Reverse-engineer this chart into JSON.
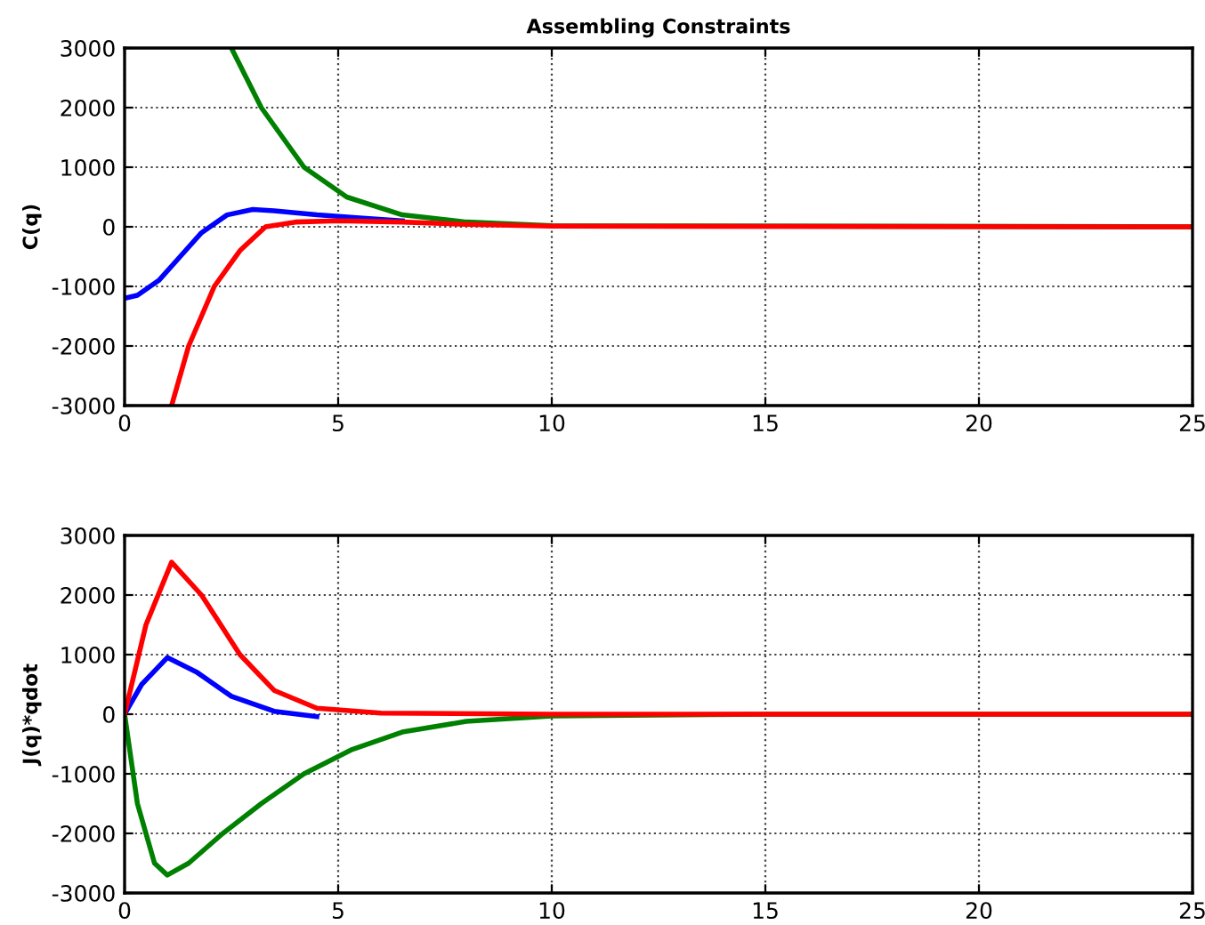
{
  "chart_data": [
    {
      "type": "line",
      "title": "Assembling Constraints",
      "ylabel": "C(q)",
      "xlim": [
        0,
        25
      ],
      "ylim": [
        -3000,
        3000
      ],
      "xticks": [
        0,
        5,
        10,
        15,
        20,
        25
      ],
      "yticks": [
        -3000,
        -2000,
        -1000,
        0,
        1000,
        2000,
        3000
      ],
      "grid": true,
      "line_style": "solid",
      "series": [
        {
          "color": "#0000ff",
          "x": [
            0,
            0.3,
            0.8,
            1.3,
            1.8,
            2.4,
            3,
            3.5,
            4.5,
            5.5,
            6.5
          ],
          "values": [
            -1200,
            -1150,
            -900,
            -500,
            -100,
            200,
            290,
            270,
            200,
            150,
            100
          ]
        },
        {
          "color": "#008000",
          "x": [
            2.5,
            3.2,
            4.2,
            5.2,
            6.5,
            8,
            10,
            25
          ],
          "values": [
            3000,
            2000,
            1000,
            500,
            200,
            80,
            20,
            0
          ]
        },
        {
          "color": "#ff0000",
          "x": [
            1.1,
            1.5,
            2.1,
            2.7,
            3.3,
            4,
            5,
            6.5,
            8,
            10,
            25
          ],
          "values": [
            -3000,
            -2000,
            -1000,
            -400,
            0,
            80,
            100,
            80,
            40,
            10,
            0
          ]
        }
      ]
    },
    {
      "type": "line",
      "ylabel": "J(q)*qdot",
      "xlim": [
        0,
        25
      ],
      "ylim": [
        -3000,
        3000
      ],
      "xticks": [
        0,
        5,
        10,
        15,
        20,
        25
      ],
      "yticks": [
        -3000,
        -2000,
        -1000,
        0,
        1000,
        2000,
        3000
      ],
      "grid": true,
      "line_style": "solid",
      "series": [
        {
          "color": "#0000ff",
          "x": [
            0,
            0.4,
            1.0,
            1.7,
            2.5,
            3.5,
            4.5
          ],
          "values": [
            0,
            500,
            950,
            700,
            300,
            50,
            -40
          ]
        },
        {
          "color": "#008000",
          "x": [
            0,
            0.3,
            0.7,
            1.0,
            1.5,
            2.3,
            3.2,
            4.2,
            5.3,
            6.5,
            8,
            10,
            15,
            25
          ],
          "values": [
            0,
            -1500,
            -2500,
            -2700,
            -2500,
            -2000,
            -1500,
            -1000,
            -600,
            -300,
            -120,
            -30,
            0,
            0
          ]
        },
        {
          "color": "#ff0000",
          "x": [
            0,
            0.5,
            1.1,
            1.8,
            2.7,
            3.5,
            4.5,
            6,
            10,
            25
          ],
          "values": [
            0,
            1500,
            2550,
            2000,
            1000,
            400,
            100,
            20,
            0,
            0
          ]
        }
      ]
    }
  ]
}
